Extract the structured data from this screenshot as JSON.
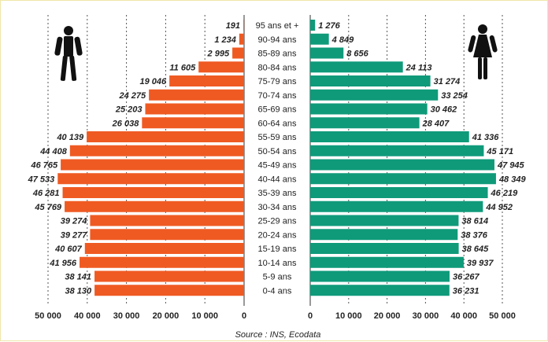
{
  "chart_data": {
    "type": "bar",
    "subtype": "population-pyramid",
    "categories": [
      "95 ans et +",
      "90-94 ans",
      "85-89 ans",
      "80-84 ans",
      "75-79 ans",
      "70-74 ans",
      "65-69 ans",
      "60-64 ans",
      "55-59 ans",
      "50-54 ans",
      "45-49 ans",
      "40-44 ans",
      "35-39 ans",
      "30-34 ans",
      "25-29 ans",
      "20-24 ans",
      "15-19 ans",
      "10-14 ans",
      "5-9 ans",
      "0-4 ans"
    ],
    "series": [
      {
        "side": "left",
        "color": "#ef5a22",
        "icon": "male-figure-icon",
        "values": [
          191,
          1234,
          2995,
          11605,
          19046,
          24275,
          25203,
          26038,
          40139,
          44408,
          46765,
          47533,
          46281,
          45769,
          39274,
          39277,
          40607,
          41956,
          38141,
          38130
        ],
        "labels": [
          "191",
          "1 234",
          "2 995",
          "11 605",
          "19 046",
          "24 275",
          "25 203",
          "26 038",
          "40 139",
          "44 408",
          "46 765",
          "47 533",
          "46 281",
          "45 769",
          "39 274",
          "39 277",
          "40 607",
          "41 956",
          "38 141",
          "38 130"
        ]
      },
      {
        "side": "right",
        "color": "#0f9a7a",
        "icon": "female-figure-icon",
        "values": [
          1276,
          4849,
          8656,
          24113,
          31274,
          33254,
          30462,
          28407,
          41336,
          45171,
          47945,
          48349,
          46219,
          44952,
          38614,
          38376,
          38645,
          39937,
          36267,
          36231
        ],
        "labels": [
          "1 276",
          "4 849",
          "8 656",
          "24 113",
          "31 274",
          "33 254",
          "30 462",
          "28 407",
          "41 336",
          "45 171",
          "47 945",
          "48 349",
          "46 219",
          "44 952",
          "38 614",
          "38 376",
          "38 645",
          "39 937",
          "36 267",
          "36 231"
        ]
      }
    ],
    "xlim": [
      0,
      50000
    ],
    "x_ticks_left": [
      "50 000",
      "40 000",
      "30 000",
      "20 000",
      "10 000",
      "0"
    ],
    "x_ticks_right": [
      "0",
      "10 000",
      "20 000",
      "30 000",
      "40 000",
      "50 000"
    ],
    "grid": "dotted vertical lines at 10 000 intervals",
    "source": "Source : INS, Ecodata"
  }
}
